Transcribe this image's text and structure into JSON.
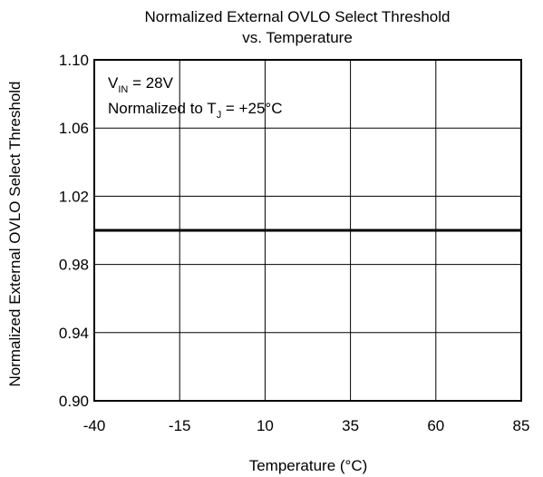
{
  "chart_data": {
    "type": "line",
    "title_line1": "Normalized External OVLO Select Threshold",
    "title_line2": "vs. Temperature",
    "xlabel": "Temperature (°C)",
    "ylabel": "Normalized External OVLO Select Threshold",
    "xlim": [
      -40,
      85
    ],
    "ylim": [
      0.9,
      1.1
    ],
    "x_ticks": [
      -40,
      -15,
      10,
      35,
      60,
      85
    ],
    "x_tick_labels": [
      "-40",
      "-15",
      "10",
      "35",
      "60",
      "85"
    ],
    "y_ticks": [
      0.9,
      0.94,
      0.98,
      1.02,
      1.06,
      1.1
    ],
    "y_tick_labels": [
      "0.90",
      "0.94",
      "0.98",
      "1.02",
      "1.06",
      "1.10"
    ],
    "grid": true,
    "annotation": {
      "line1_prefix": "V",
      "line1_sub": "IN",
      "line1_suffix": " = 28V",
      "line2_prefix": "Normalized to T",
      "line2_sub": "J",
      "line2_suffix": " = +25°C"
    },
    "series": [
      {
        "x": [
          -40,
          -15,
          10,
          35,
          60,
          85
        ],
        "values": [
          1.0,
          1.0,
          1.0,
          1.0,
          1.0,
          1.0
        ]
      }
    ],
    "colors": {
      "line": "#000000",
      "grid": "#000000"
    }
  }
}
